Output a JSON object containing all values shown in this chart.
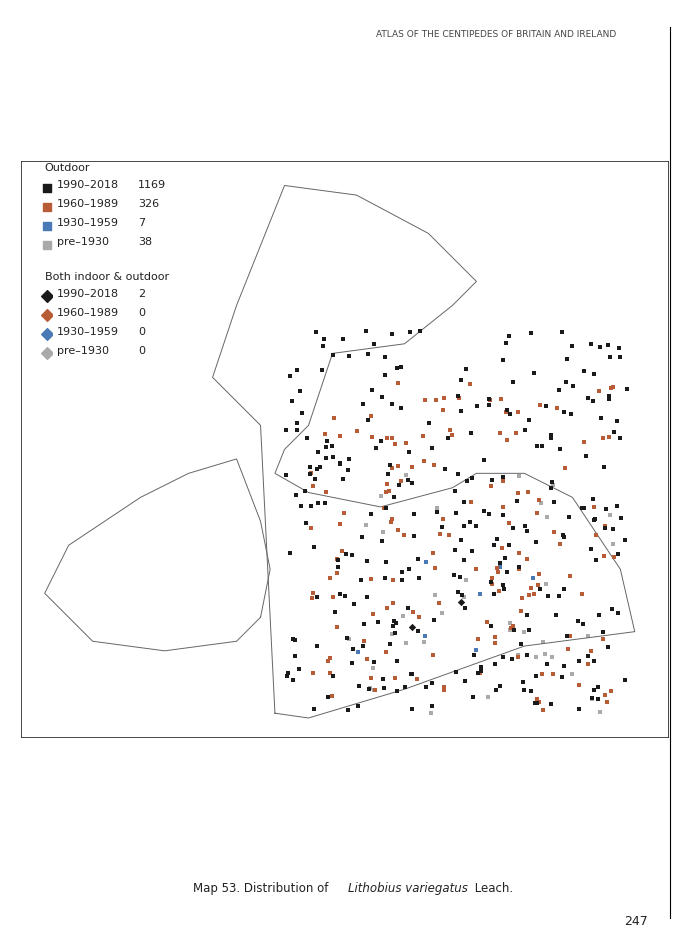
{
  "title_header": "ATLAS OF THE CENTIPEDES OF BRITAIN AND IRELAND",
  "caption_prefix": "Map 53. Distribution of ",
  "caption_italic": "Lithobius variegatus",
  "caption_suffix": " Leach.",
  "page_number": "247",
  "legend": {
    "outdoor_label": "Outdoor",
    "both_label": "Both indoor & outdoor",
    "categories": [
      "1990–2018",
      "1960–1989",
      "1930–1959",
      "pre–1930"
    ],
    "outdoor_counts": [
      1169,
      326,
      7,
      38
    ],
    "both_counts": [
      2,
      0,
      0,
      0
    ],
    "outdoor_colors": [
      "#1a1a1a",
      "#b85c38",
      "#4a7ab5",
      "#aaaaaa"
    ],
    "both_colors": [
      "#1a1a1a",
      "#b85c38",
      "#4a7ab5",
      "#aaaaaa"
    ]
  },
  "map": {
    "xlim": [
      -11.0,
      2.5
    ],
    "ylim": [
      49.5,
      61.5
    ],
    "figsize": [
      6.89,
      9.51
    ],
    "dpi": 100
  },
  "background_color": "#ffffff",
  "coastline_color": "#666666",
  "grid_color": "#dddddd"
}
